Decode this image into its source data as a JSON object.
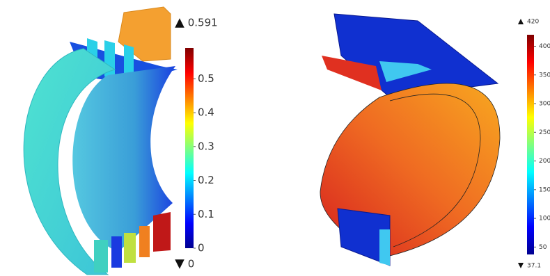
{
  "chart_data": [
    {
      "type": "colorbar",
      "zlim": [
        0,
        0.591
      ],
      "zticks": [
        0,
        0.1,
        0.2,
        0.3,
        0.4,
        0.5
      ]
    },
    {
      "type": "colorbar",
      "zlim": [
        37.1,
        420
      ],
      "zticks": [
        50,
        100,
        150,
        200,
        250,
        300,
        350,
        400
      ]
    }
  ]
}
